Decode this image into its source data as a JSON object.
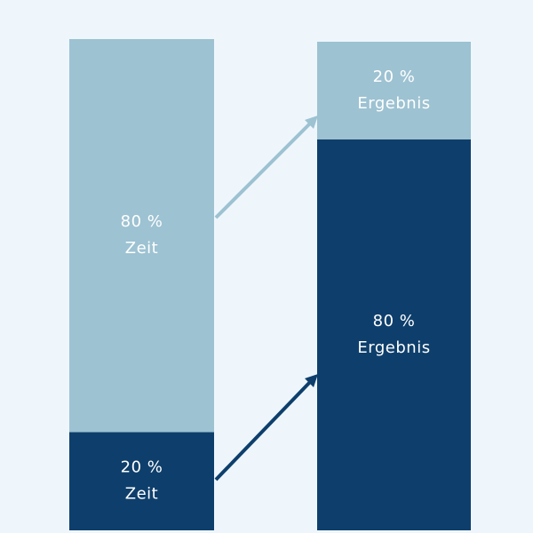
{
  "bars": [
    {
      "segments": [
        {
          "value": 20,
          "value_label": "20 %",
          "label": "Zeit",
          "color": "#0e3f6c"
        },
        {
          "value": 80,
          "value_label": "80 %",
          "label": "Zeit",
          "color": "#9dc2d2"
        }
      ]
    },
    {
      "segments": [
        {
          "value": 80,
          "value_label": "80 %",
          "label": "Ergebnis",
          "color": "#0e3f6c"
        },
        {
          "value": 20,
          "value_label": "20 %",
          "label": "Ergebnis",
          "color": "#9dc2d2"
        }
      ]
    }
  ]
}
